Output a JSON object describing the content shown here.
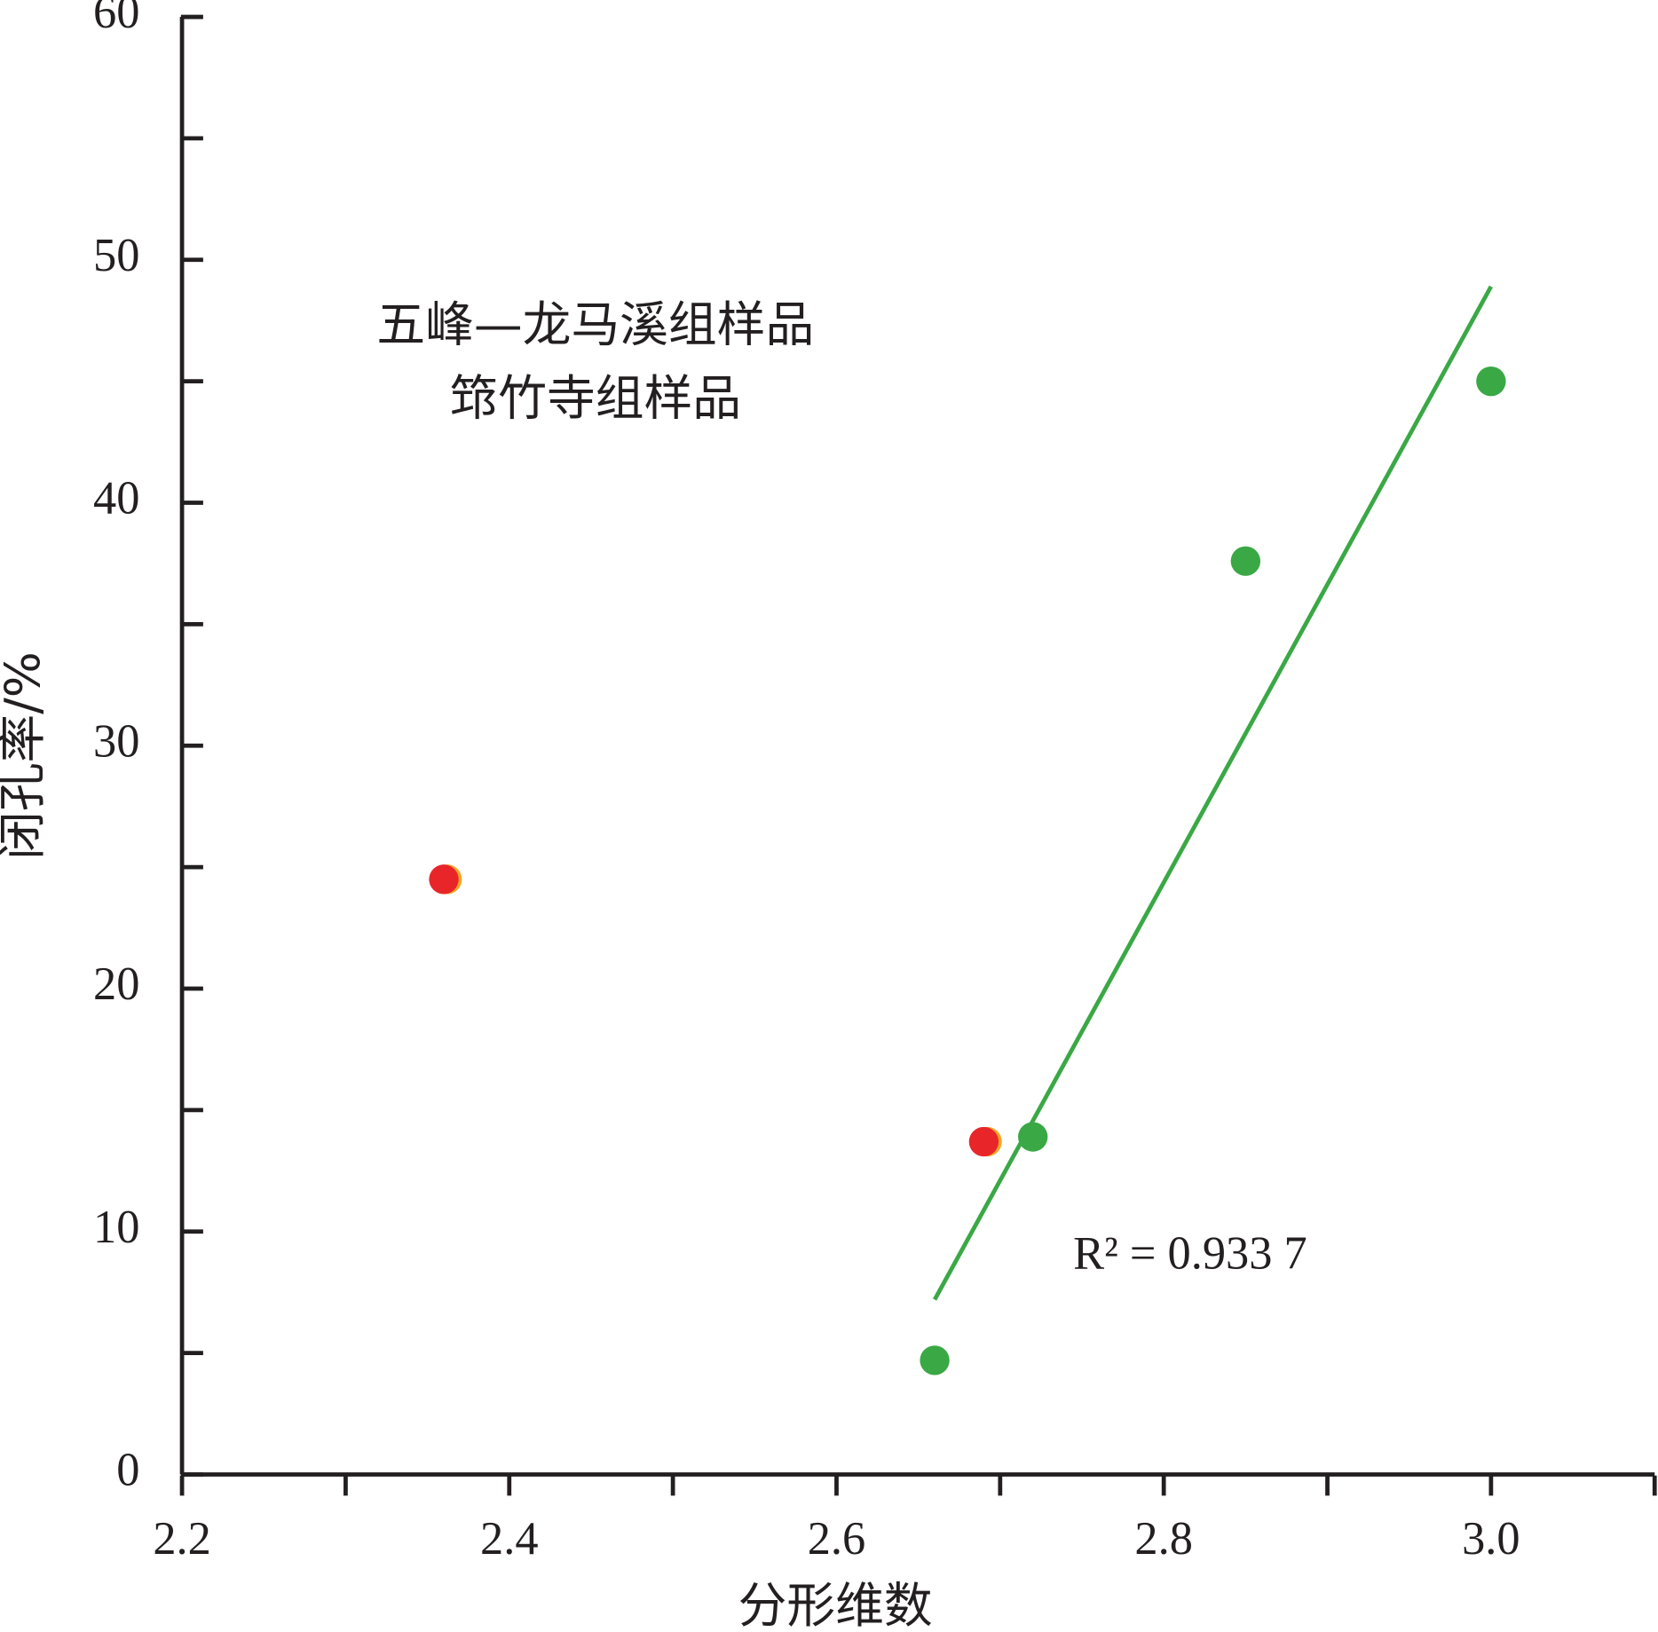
{
  "chart_data": {
    "type": "scatter",
    "x_label": "分形维数",
    "y_label": "闭孔率/%",
    "xlim": [
      2.2,
      3.1
    ],
    "ylim": [
      0,
      60
    ],
    "xticks": [
      2.2,
      2.4,
      2.6,
      2.8,
      {
        "value": 3,
        "label": "3.0"
      }
    ],
    "xminorticks": [
      2.3,
      2.5,
      2.7,
      2.9,
      3.1
    ],
    "yticks": [
      0,
      10,
      20,
      30,
      40,
      50,
      60
    ],
    "yminorticks": [
      5,
      15,
      25,
      35,
      45,
      55
    ],
    "series": [
      {
        "name": "五峰—龙马溪组样品",
        "color": "#3aa845",
        "x": [
          2.66,
          2.72,
          2.85,
          3.0
        ],
        "values": [
          4.7,
          13.9,
          37.6,
          45.0
        ]
      },
      {
        "color": "#f5a623",
        "x": [
          2.362,
          2.692
        ],
        "values": [
          24.5,
          13.7
        ]
      },
      {
        "name": "筇竹寺组样品",
        "color": "#e8262a",
        "x": [
          2.36,
          2.69
        ],
        "values": [
          24.5,
          13.7
        ]
      }
    ],
    "trendline": {
      "color": "#3aa845",
      "x": [
        2.66,
        3.0
      ],
      "y": [
        7.2,
        48.9
      ]
    },
    "annotation": "R² = 0.933 7"
  }
}
